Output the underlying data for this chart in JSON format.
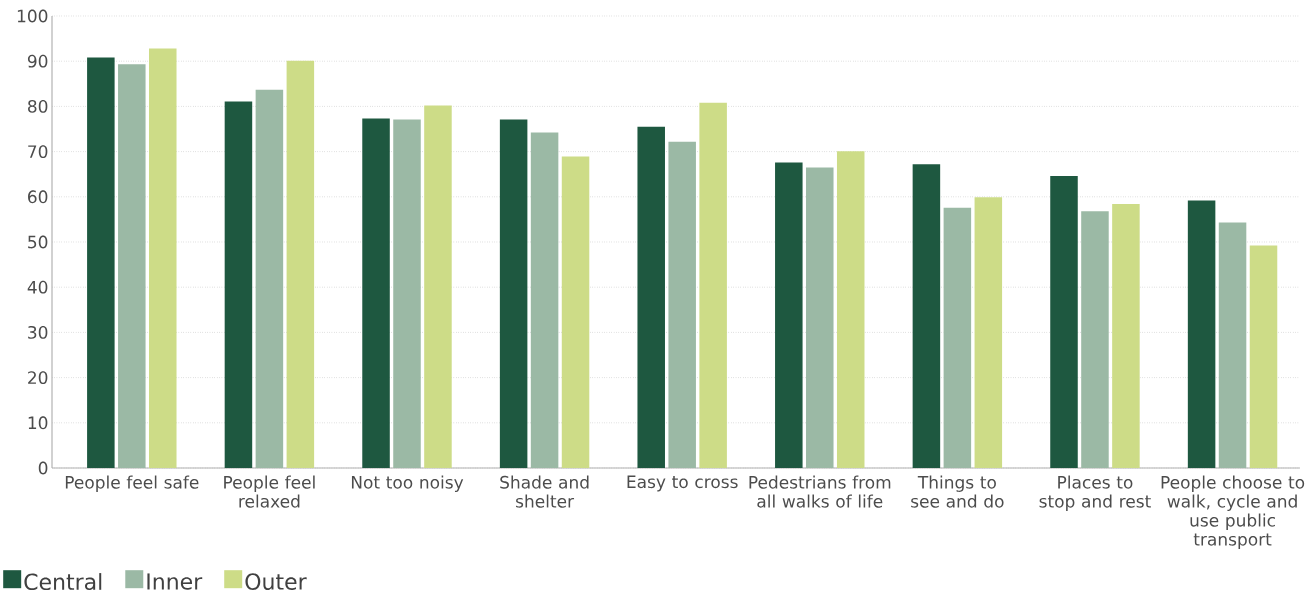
{
  "chart_data": {
    "type": "bar",
    "categories": [
      "People feel safe",
      "People feel relaxed",
      "Not too noisy",
      "Shade and shelter",
      "Easy to cross",
      "Pedestrians from all walks of life",
      "Things to see and do",
      "Places to stop and rest",
      "People choose to walk, cycle and use public transport"
    ],
    "series": [
      {
        "name": "Central",
        "color": "#1e5840",
        "values": [
          90.8,
          81.1,
          77.3,
          77.1,
          75.5,
          67.6,
          67.2,
          64.6,
          59.2
        ]
      },
      {
        "name": "Inner",
        "color": "#9bb9a5",
        "values": [
          89.3,
          83.7,
          77.1,
          74.2,
          72.2,
          66.5,
          57.6,
          56.8,
          54.3
        ]
      },
      {
        "name": "Outer",
        "color": "#cddc87",
        "values": [
          92.8,
          90.1,
          80.2,
          68.9,
          80.8,
          70.1,
          59.9,
          58.4,
          49.2
        ]
      }
    ],
    "ylim": [
      0,
      100
    ],
    "yticks": [
      0,
      10,
      20,
      30,
      40,
      50,
      60,
      70,
      80,
      90,
      100
    ],
    "grid": "y",
    "legend": "bottom left"
  }
}
